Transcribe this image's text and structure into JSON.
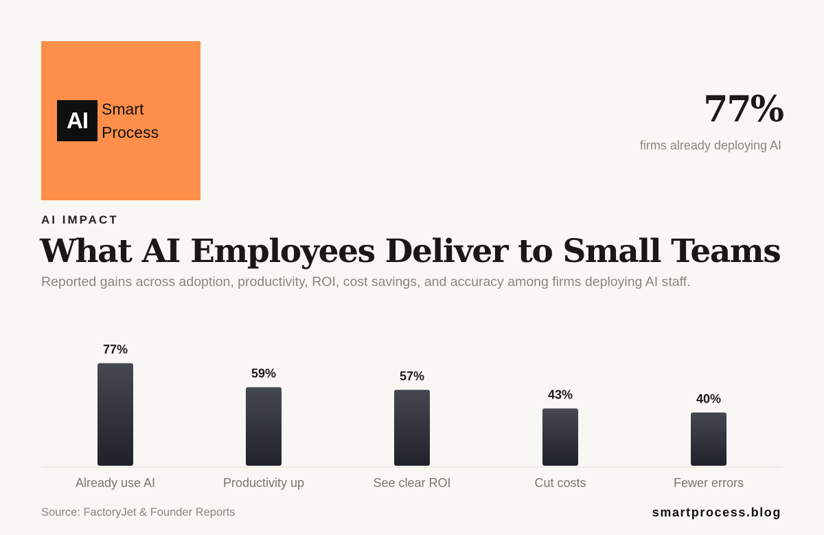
{
  "brand": {
    "logo_mark": "AI",
    "logo_word_1": "Smart",
    "logo_word_2": "Process",
    "accent_color": "#ff8f4a"
  },
  "highlight": {
    "value": "77%",
    "caption": "firms already deploying AI"
  },
  "header": {
    "eyebrow": "AI IMPACT",
    "title": "What AI Employees Deliver to Small Teams",
    "subtitle": "Reported gains across adoption, productivity, ROI, cost savings, and accuracy among firms deploying AI staff."
  },
  "chart_data": {
    "type": "bar",
    "categories": [
      "Already use AI",
      "Productivity up",
      "See clear ROI",
      "Cut costs",
      "Fewer errors"
    ],
    "values": [
      77,
      59,
      57,
      43,
      40
    ],
    "value_labels": [
      "77%",
      "59%",
      "57%",
      "43%",
      "40%"
    ],
    "ylim": [
      0,
      85
    ],
    "grid": false,
    "bar_color_top": "#454851",
    "bar_color_bottom": "#1f222b",
    "axis_color": "#e2ded8"
  },
  "footer": {
    "source": "Source: FactoryJet & Founder Reports",
    "site": "smartprocess.blog"
  }
}
